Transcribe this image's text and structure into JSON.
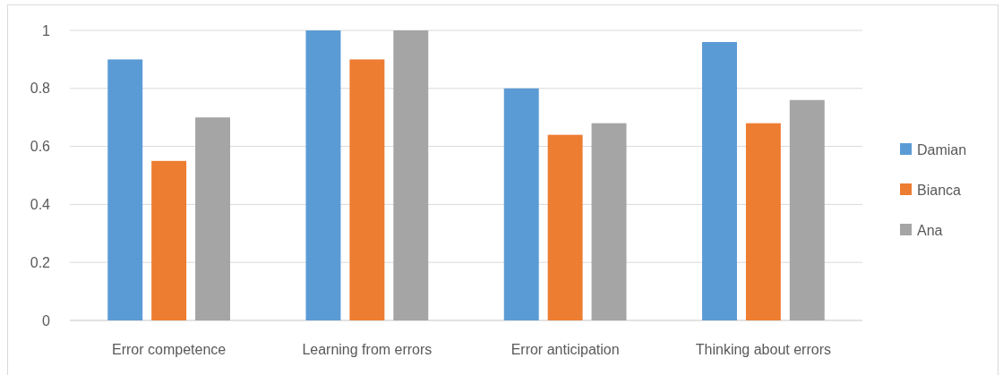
{
  "chart_data": {
    "type": "bar",
    "categories": [
      "Error competence",
      "Learning from errors",
      "Error anticipation",
      "Thinking about errors"
    ],
    "series": [
      {
        "name": "Damian",
        "color": "#5b9bd5",
        "values": [
          0.9,
          1,
          0.8,
          0.96
        ]
      },
      {
        "name": "Bianca",
        "color": "#ed7d31",
        "values": [
          0.55,
          0.9,
          0.64,
          0.68
        ]
      },
      {
        "name": "Ana",
        "color": "#a5a5a5",
        "values": [
          0.7,
          1,
          0.68,
          0.76
        ]
      }
    ],
    "ylim": [
      0,
      1
    ],
    "yticks": [
      0,
      0.2,
      0.4,
      0.6,
      0.8,
      1
    ],
    "grid": "y",
    "legend": "right"
  }
}
